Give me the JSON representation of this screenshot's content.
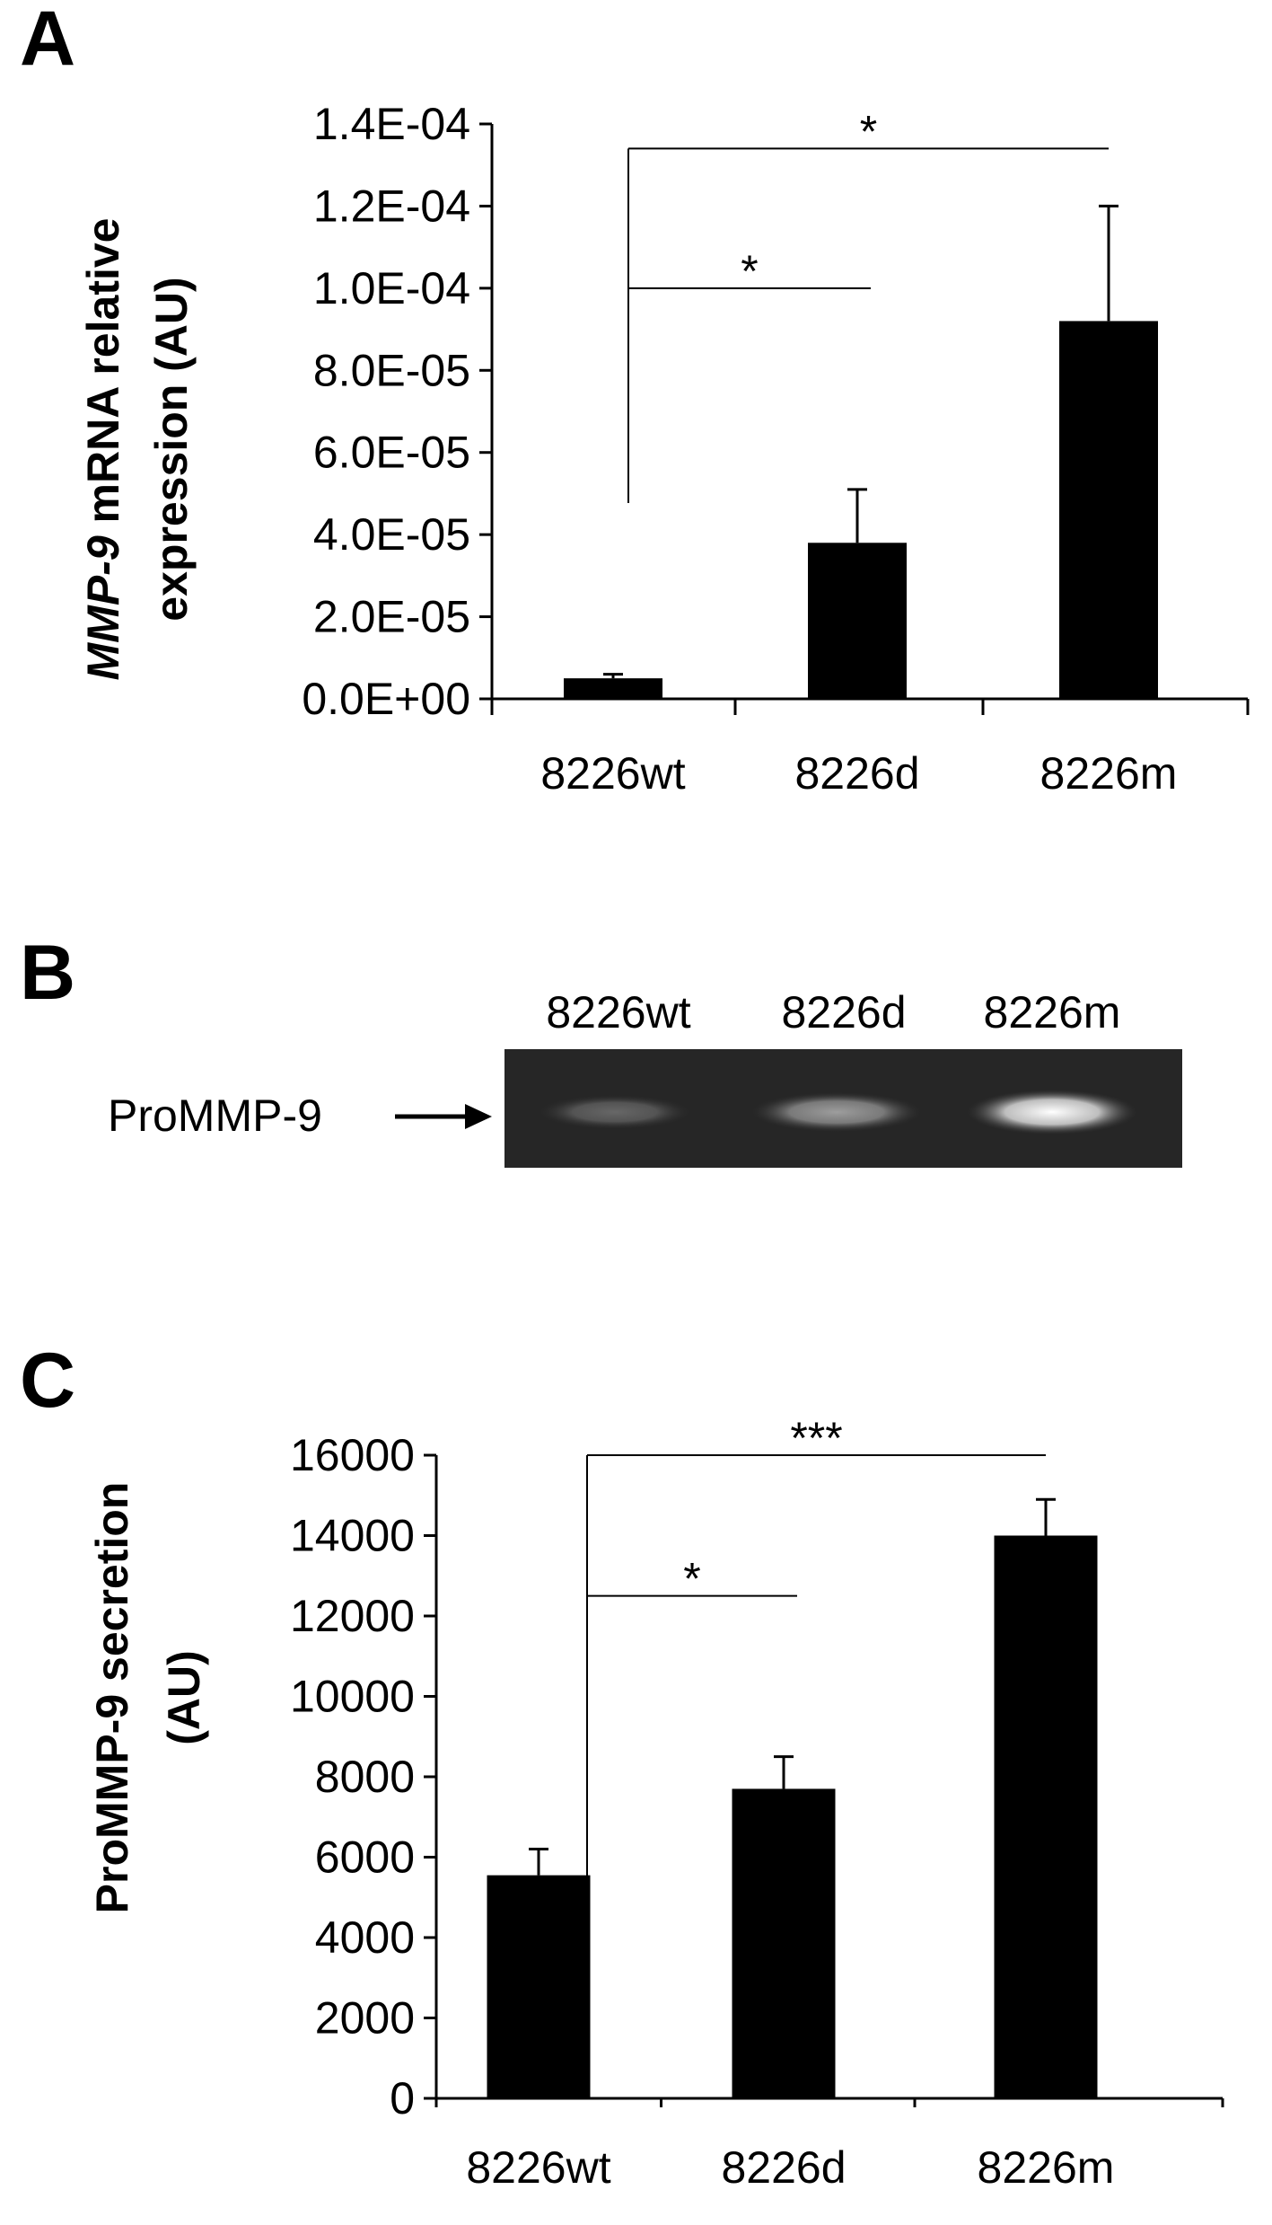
{
  "panels": {
    "a": {
      "letter": "A"
    },
    "b": {
      "letter": "B"
    },
    "c": {
      "letter": "C"
    }
  },
  "gel": {
    "lane_labels": [
      "8226wt",
      "8226d",
      "8226m"
    ],
    "band_label": "ProMMP-9",
    "band_intensity": [
      0.3,
      0.55,
      1.0
    ]
  },
  "chart_data": [
    {
      "type": "bar",
      "panel": "A",
      "categories": [
        "8226wt",
        "8226d",
        "8226m"
      ],
      "values": [
        5e-06,
        3.8e-05,
        9.2e-05
      ],
      "error": [
        1e-06,
        1.3e-05,
        2.8e-05
      ],
      "ylim": [
        0,
        0.00014
      ],
      "yticks": [
        0,
        2e-05,
        4e-05,
        6e-05,
        8e-05,
        0.0001,
        0.00012,
        0.00014
      ],
      "ytick_labels": [
        "0.0E+00",
        "2.0E-05",
        "4.0E-05",
        "6.0E-05",
        "8.0E-05",
        "1.0E-04",
        "1.2E-04",
        "1.4E-04"
      ],
      "ylabel_italic": "MMP-9",
      "ylabel_rest": " mRNA relative",
      "ylabel_line2": "expression (AU)",
      "bar_color": "#000000",
      "significance": [
        {
          "from": 0,
          "to": 1,
          "y": 0.0001,
          "label": "*"
        },
        {
          "from": 0,
          "to": 2,
          "y": 0.000134,
          "label": "*"
        }
      ]
    },
    {
      "type": "bar",
      "panel": "C",
      "categories": [
        "8226wt",
        "8226d",
        "8226m"
      ],
      "values": [
        5550,
        7700,
        14000
      ],
      "error": [
        650,
        800,
        900
      ],
      "ylim": [
        0,
        16000
      ],
      "yticks": [
        0,
        2000,
        4000,
        6000,
        8000,
        10000,
        12000,
        14000,
        16000
      ],
      "ytick_labels": [
        "0",
        "2000",
        "4000",
        "6000",
        "8000",
        "10000",
        "12000",
        "14000",
        "16000"
      ],
      "ylabel_line1": "ProMMP-9 secretion",
      "ylabel_line2": "(AU)",
      "bar_color": "#000000",
      "significance": [
        {
          "from": 0,
          "to": 1,
          "y": 12500,
          "label": "*"
        },
        {
          "from": 0,
          "to": 2,
          "y": 16000,
          "label": "***"
        }
      ]
    }
  ]
}
